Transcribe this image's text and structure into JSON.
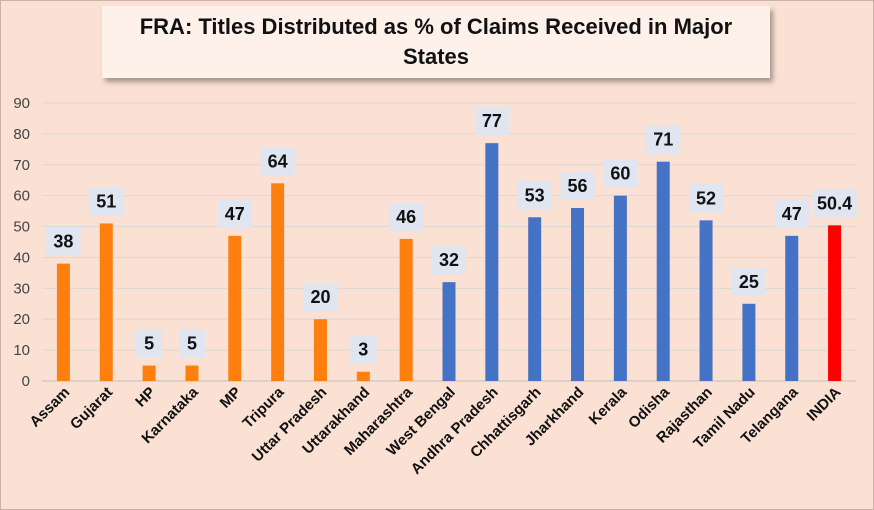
{
  "chart_data": {
    "type": "bar",
    "title": "FRA: Titles Distributed as % of Claims Received in Major States",
    "xlabel": "",
    "ylabel": "",
    "ylim": [
      0,
      90
    ],
    "yticks": [
      0,
      10,
      20,
      30,
      40,
      50,
      60,
      70,
      80,
      90
    ],
    "grid": true,
    "categories": [
      "Assam",
      "Gujarat",
      "HP",
      "Karnataka",
      "MP",
      "Tripura",
      "Uttar Pradesh",
      "Uttarakhand",
      "Maharashtra",
      "West Bengal",
      "Andhra Pradesh",
      "Chhattisgarh",
      "Jharkhand",
      "Kerala",
      "Odisha",
      "Rajasthan",
      "Tamil Nadu",
      "Telangana",
      "INDIA"
    ],
    "values": [
      38,
      51,
      5,
      5,
      47,
      64,
      20,
      3,
      46,
      32,
      77,
      53,
      56,
      60,
      71,
      52,
      25,
      47,
      50.4
    ],
    "data_labels": [
      "38",
      "51",
      "5",
      "5",
      "47",
      "64",
      "20",
      "3",
      "46",
      "32",
      "77",
      "53",
      "56",
      "60",
      "71",
      "52",
      "25",
      "47",
      "50.4"
    ],
    "bar_colors": [
      "#ff7f0e",
      "#ff7f0e",
      "#ff7f0e",
      "#ff7f0e",
      "#ff7f0e",
      "#ff7f0e",
      "#ff7f0e",
      "#ff7f0e",
      "#ff7f0e",
      "#4472c4",
      "#4472c4",
      "#4472c4",
      "#4472c4",
      "#4472c4",
      "#4472c4",
      "#4472c4",
      "#4472c4",
      "#4472c4",
      "#ff0000"
    ],
    "colors": {
      "background": "#fbe1d3",
      "grid": "#d9d9d9",
      "label_box": "#dfe6f2"
    }
  }
}
